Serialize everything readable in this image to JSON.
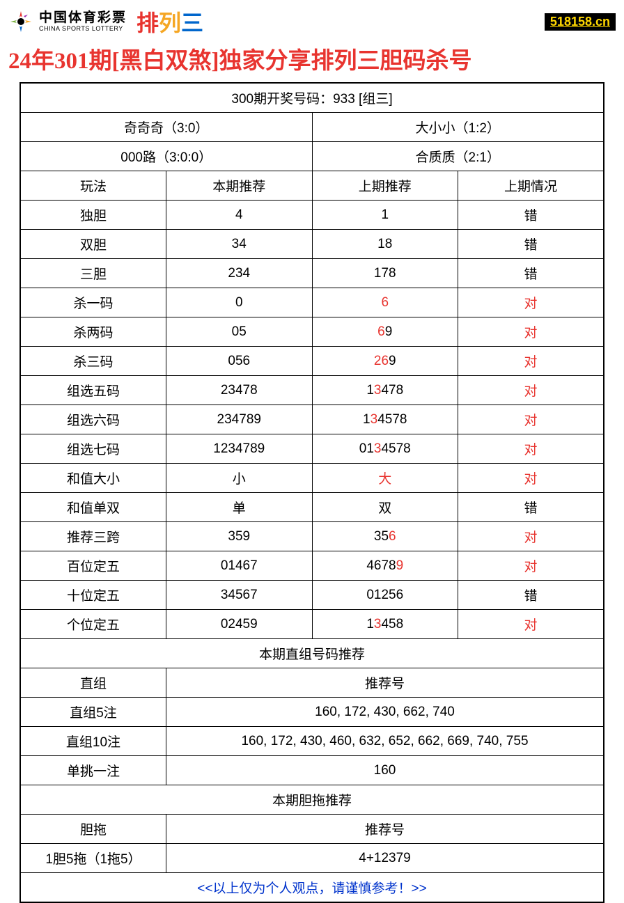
{
  "header": {
    "logo_cn": "中国体育彩票",
    "logo_en": "CHINA SPORTS LOTTERY",
    "pls": [
      "排",
      "列",
      "三"
    ],
    "site": "518158.cn"
  },
  "title": "24年301期[黑白双煞]独家分享排列三胆码杀号",
  "draw_info": "300期开奖号码：933 [组三]",
  "stat_rows": [
    [
      "奇奇奇（3:0）",
      "大小小（1:2）"
    ],
    [
      "000路（3:0:0）",
      "合质质（2:1）"
    ]
  ],
  "columns": [
    "玩法",
    "本期推荐",
    "上期推荐",
    "上期情况"
  ],
  "rows": [
    {
      "name": "独胆",
      "curr": [
        {
          "t": "4"
        }
      ],
      "prev": [
        {
          "t": "1"
        }
      ],
      "result": {
        "t": "错",
        "red": false
      }
    },
    {
      "name": "双胆",
      "curr": [
        {
          "t": "34"
        }
      ],
      "prev": [
        {
          "t": "18"
        }
      ],
      "result": {
        "t": "错",
        "red": false
      }
    },
    {
      "name": "三胆",
      "curr": [
        {
          "t": "234"
        }
      ],
      "prev": [
        {
          "t": "178"
        }
      ],
      "result": {
        "t": "错",
        "red": false
      }
    },
    {
      "name": "杀一码",
      "curr": [
        {
          "t": "0"
        }
      ],
      "prev": [
        {
          "t": "6",
          "red": true
        }
      ],
      "result": {
        "t": "对",
        "red": true
      }
    },
    {
      "name": "杀两码",
      "curr": [
        {
          "t": "05"
        }
      ],
      "prev": [
        {
          "t": "6",
          "red": true
        },
        {
          "t": "9"
        }
      ],
      "result": {
        "t": "对",
        "red": true
      }
    },
    {
      "name": "杀三码",
      "curr": [
        {
          "t": "056"
        }
      ],
      "prev": [
        {
          "t": "2",
          "red": true
        },
        {
          "t": "6",
          "red": true
        },
        {
          "t": "9"
        }
      ],
      "result": {
        "t": "对",
        "red": true
      }
    },
    {
      "name": "组选五码",
      "curr": [
        {
          "t": "23478"
        }
      ],
      "prev": [
        {
          "t": "1"
        },
        {
          "t": "3",
          "red": true
        },
        {
          "t": "478"
        }
      ],
      "result": {
        "t": "对",
        "red": true
      }
    },
    {
      "name": "组选六码",
      "curr": [
        {
          "t": "234789"
        }
      ],
      "prev": [
        {
          "t": "1"
        },
        {
          "t": "3",
          "red": true
        },
        {
          "t": "4578"
        }
      ],
      "result": {
        "t": "对",
        "red": true
      }
    },
    {
      "name": "组选七码",
      "curr": [
        {
          "t": "1234789"
        }
      ],
      "prev": [
        {
          "t": "01"
        },
        {
          "t": "3",
          "red": true
        },
        {
          "t": "4578"
        }
      ],
      "result": {
        "t": "对",
        "red": true
      }
    },
    {
      "name": "和值大小",
      "curr": [
        {
          "t": "小"
        }
      ],
      "prev": [
        {
          "t": "大",
          "red": true
        }
      ],
      "result": {
        "t": "对",
        "red": true
      }
    },
    {
      "name": "和值单双",
      "curr": [
        {
          "t": "单"
        }
      ],
      "prev": [
        {
          "t": "双"
        }
      ],
      "result": {
        "t": "错",
        "red": false
      }
    },
    {
      "name": "推荐三跨",
      "curr": [
        {
          "t": "359"
        }
      ],
      "prev": [
        {
          "t": "35"
        },
        {
          "t": "6",
          "red": true
        }
      ],
      "result": {
        "t": "对",
        "red": true
      }
    },
    {
      "name": "百位定五",
      "curr": [
        {
          "t": "01467"
        }
      ],
      "prev": [
        {
          "t": "4678"
        },
        {
          "t": "9",
          "red": true
        }
      ],
      "result": {
        "t": "对",
        "red": true
      }
    },
    {
      "name": "十位定五",
      "curr": [
        {
          "t": "34567"
        }
      ],
      "prev": [
        {
          "t": "01256"
        }
      ],
      "result": {
        "t": "错",
        "red": false
      }
    },
    {
      "name": "个位定五",
      "curr": [
        {
          "t": "02459"
        }
      ],
      "prev": [
        {
          "t": "1"
        },
        {
          "t": "3",
          "red": true
        },
        {
          "t": "458"
        }
      ],
      "result": {
        "t": "对",
        "red": true
      }
    }
  ],
  "section2_title": "本期直组号码推荐",
  "section2_header": [
    "直组",
    "推荐号"
  ],
  "section2_rows": [
    {
      "label": "直组5注",
      "value": "160, 172, 430, 662, 740"
    },
    {
      "label": "直组10注",
      "value": "160, 172, 430, 460, 632, 652, 662, 669, 740, 755"
    },
    {
      "label": "单挑一注",
      "value": "160"
    }
  ],
  "section3_title": "本期胆拖推荐",
  "section3_header": [
    "胆拖",
    "推荐号"
  ],
  "section3_rows": [
    {
      "label": "1胆5拖（1拖5）",
      "value": "4+12379"
    }
  ],
  "footer": "<<以上仅为个人观点，请谨慎参考！>>",
  "colors": {
    "red": "#e8342f",
    "blue": "#0033cc",
    "black": "#000000",
    "gold": "#ffd700",
    "orange": "#f5a623"
  }
}
